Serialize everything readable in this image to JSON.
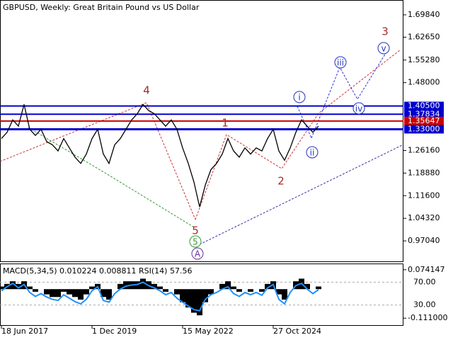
{
  "chart_data": [
    {
      "type": "line",
      "title": "GBPUSD, Weekly:  Great Britain Pound vs US Dollar",
      "categories": [
        "18 Jun 2017",
        null,
        null,
        null,
        null,
        null,
        null,
        null,
        null,
        null,
        null,
        null,
        null,
        null,
        null,
        null,
        "1 Dec 2019",
        null,
        null,
        null,
        null,
        null,
        null,
        null,
        null,
        null,
        null,
        null,
        null,
        null,
        null,
        null,
        "15 May 2022",
        null,
        null,
        null,
        null,
        null,
        null,
        null,
        null,
        null,
        null,
        null,
        null,
        null,
        null,
        null,
        "27 Oct 2024",
        null,
        null,
        null,
        null,
        null,
        null,
        null,
        null
      ],
      "values": [
        1.3,
        1.32,
        1.36,
        1.34,
        1.41,
        1.33,
        1.31,
        1.33,
        1.29,
        1.28,
        1.26,
        1.3,
        1.27,
        1.24,
        1.22,
        1.25,
        1.3,
        1.33,
        1.25,
        1.22,
        1.28,
        1.3,
        1.33,
        1.36,
        1.38,
        1.41,
        1.39,
        1.38,
        1.36,
        1.34,
        1.36,
        1.33,
        1.27,
        1.22,
        1.16,
        1.08,
        1.15,
        1.2,
        1.22,
        1.25,
        1.3,
        1.26,
        1.24,
        1.27,
        1.25,
        1.27,
        1.26,
        1.3,
        1.33,
        1.26,
        1.23,
        1.27,
        1.32,
        1.36,
        1.34,
        1.32,
        1.34
      ],
      "color": "#000000",
      "ylim": [
        0.9022,
        1.7439
      ],
      "yticks": [
        {
          "value": 1.6984,
          "label": "1.69840"
        },
        {
          "value": 1.6265,
          "label": "1.62650"
        },
        {
          "value": 1.5528,
          "label": "1.55280"
        },
        {
          "value": 1.48,
          "label": "1.48000"
        },
        {
          "value": 1.2616,
          "label": "1.26160"
        },
        {
          "value": 1.1888,
          "label": "1.18880"
        },
        {
          "value": 1.116,
          "label": "1.11600"
        },
        {
          "value": 1.0432,
          "label": "1.04320"
        },
        {
          "value": 0.9704,
          "label": "0.97040"
        }
      ],
      "levels": [
        {
          "value": 1.405,
          "label": "1.40500",
          "color": "#0000cc"
        },
        {
          "value": 1.37834,
          "label": "1.37834",
          "color": "#0000cc"
        },
        {
          "value": 1.35647,
          "label": "1.35647",
          "color": "#cc0000"
        },
        {
          "value": 1.33,
          "label": "1.33000",
          "color": "#0000cc"
        }
      ],
      "annotations": [
        {
          "text": "4"
        },
        {
          "text": "1"
        },
        {
          "text": "2"
        },
        {
          "text": "3"
        },
        {
          "text": "5"
        },
        {
          "text": "5"
        },
        {
          "text": "A"
        },
        {
          "text": "i"
        },
        {
          "text": "ii"
        },
        {
          "text": "iii"
        },
        {
          "text": "iv"
        },
        {
          "text": "v"
        }
      ]
    },
    {
      "type": "macd",
      "title": "MACD(5,34,5) 0.010224 0.008811 RSI(14) 57.56",
      "values": [
        0.01,
        0.02,
        0.03,
        0.02,
        0.03,
        0.01,
        -0.01,
        0.0,
        -0.02,
        -0.03,
        -0.03,
        -0.01,
        -0.02,
        -0.03,
        -0.04,
        -0.02,
        0.01,
        0.02,
        -0.03,
        -0.04,
        0.0,
        0.02,
        0.03,
        0.03,
        0.03,
        0.04,
        0.03,
        0.02,
        0.01,
        -0.01,
        0.0,
        -0.02,
        -0.05,
        -0.07,
        -0.09,
        -0.1,
        -0.05,
        -0.02,
        0.0,
        0.02,
        0.03,
        0.01,
        -0.01,
        0.0,
        -0.01,
        0.0,
        -0.01,
        0.02,
        0.03,
        -0.02,
        -0.04,
        0.0,
        0.03,
        0.04,
        0.02,
        0.0,
        0.01
      ],
      "color": "#000000",
      "rsi": [
        55,
        62,
        68,
        60,
        66,
        52,
        45,
        50,
        44,
        40,
        38,
        48,
        42,
        36,
        32,
        40,
        55,
        62,
        38,
        35,
        50,
        58,
        63,
        65,
        66,
        70,
        64,
        60,
        55,
        48,
        52,
        42,
        35,
        28,
        22,
        20,
        40,
        48,
        52,
        58,
        62,
        50,
        45,
        52,
        48,
        52,
        47,
        60,
        66,
        40,
        32,
        52,
        64,
        68,
        58,
        50,
        57
      ],
      "rsi_color": "#1e90ff",
      "ylim": [
        -0.1375,
        0.0953
      ],
      "yticks": [
        {
          "value": 0.074147,
          "label": "0.074147"
        },
        {
          "value": -0.111,
          "label": "-0.111000"
        }
      ],
      "y2lim": [
        -5.2,
        101.5
      ],
      "y2ticks": [
        {
          "value": 70,
          "label": "70.00"
        },
        {
          "value": 30,
          "label": "30.00"
        }
      ]
    }
  ]
}
